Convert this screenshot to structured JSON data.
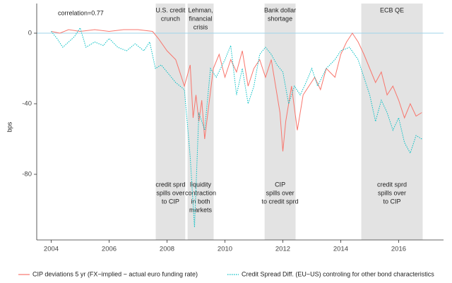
{
  "chart_data": {
    "type": "line",
    "y_label": "bps",
    "xlim": [
      2003.5,
      2017.55
    ],
    "ylim": [
      -117.2,
      16.8
    ],
    "xticks": [
      2004,
      2006,
      2008,
      2010,
      2012,
      2014,
      2016
    ],
    "yticks": [
      0,
      -40,
      -80
    ],
    "hline": 0,
    "hline_color": "#9fd3ea",
    "region_color": "#e3e3e3",
    "annotations": [
      "correlation=0.77"
    ],
    "regions": [
      {
        "start": 2007.61,
        "end": 2008.63,
        "label": [
          "U.S. credit",
          "crunch"
        ],
        "note": [
          "credit sprd",
          "spills over",
          "to CIP"
        ]
      },
      {
        "start": 2008.71,
        "end": 2009.61,
        "label": [
          "Lehman,",
          "financial",
          "crisis"
        ],
        "note": [
          "liquidity",
          "contraction",
          "in both",
          "markets"
        ]
      },
      {
        "start": 2011.37,
        "end": 2012.44,
        "label": [
          "Bank dollar",
          "shortage"
        ],
        "note": [
          "CIP",
          "spills over",
          "to credit sprd"
        ]
      },
      {
        "start": 2014.71,
        "end": 2016.83,
        "label": [
          "ECB QE"
        ],
        "note": [
          "credit sprd",
          "spills over",
          "to CIP"
        ]
      }
    ],
    "legend": "bottom",
    "series": [
      {
        "name": "CIP deviations 5 yr (FX−implied − actual euro funding rate)",
        "color": "#f8766d",
        "dashed": false,
        "x": [
          2004.0,
          2004.3,
          2004.6,
          2005.0,
          2005.5,
          2006.0,
          2006.5,
          2007.0,
          2007.5,
          2007.7,
          2008.0,
          2008.3,
          2008.6,
          2008.8,
          2008.9,
          2009.0,
          2009.1,
          2009.2,
          2009.3,
          2009.45,
          2009.6,
          2009.8,
          2010.0,
          2010.2,
          2010.4,
          2010.6,
          2010.8,
          2011.0,
          2011.2,
          2011.4,
          2011.6,
          2011.8,
          2011.9,
          2012.0,
          2012.1,
          2012.3,
          2012.5,
          2012.7,
          2012.9,
          2013.1,
          2013.3,
          2013.5,
          2013.8,
          2014.0,
          2014.2,
          2014.4,
          2014.6,
          2014.8,
          2015.0,
          2015.2,
          2015.4,
          2015.6,
          2015.8,
          2016.0,
          2016.2,
          2016.4,
          2016.6,
          2016.8
        ],
        "values": [
          1,
          0,
          2,
          1,
          2,
          1,
          2,
          2,
          1,
          -3,
          -10,
          -15,
          -30,
          -18,
          -48,
          -35,
          -50,
          -38,
          -60,
          -40,
          -20,
          -12,
          -25,
          -15,
          -22,
          -10,
          -30,
          -20,
          -15,
          -25,
          -15,
          -35,
          -45,
          -67,
          -50,
          -30,
          -55,
          -35,
          -30,
          -25,
          -32,
          -20,
          -25,
          -12,
          -5,
          0,
          -5,
          -12,
          -20,
          -28,
          -22,
          -35,
          -30,
          -38,
          -48,
          -40,
          -47,
          -45
        ]
      },
      {
        "name": "Credit Spread Diff. (EU−US) controling for other bond characteristics",
        "color": "#00bfc4",
        "dashed": true,
        "x": [
          2004.0,
          2004.2,
          2004.4,
          2004.6,
          2004.8,
          2005.0,
          2005.2,
          2005.5,
          2005.8,
          2006.0,
          2006.3,
          2006.6,
          2006.9,
          2007.2,
          2007.4,
          2007.6,
          2007.8,
          2008.0,
          2008.3,
          2008.6,
          2008.8,
          2008.95,
          2009.1,
          2009.3,
          2009.5,
          2009.7,
          2010.0,
          2010.2,
          2010.4,
          2010.6,
          2010.8,
          2011.0,
          2011.2,
          2011.4,
          2011.6,
          2011.8,
          2012.0,
          2012.2,
          2012.4,
          2012.6,
          2012.8,
          2013.0,
          2013.2,
          2013.5,
          2013.8,
          2014.0,
          2014.3,
          2014.6,
          2014.8,
          2015.0,
          2015.2,
          2015.4,
          2015.6,
          2015.8,
          2016.0,
          2016.2,
          2016.4,
          2016.6,
          2016.8
        ],
        "values": [
          1,
          -3,
          -8,
          -5,
          -2,
          3,
          -8,
          -5,
          -7,
          -3,
          -8,
          -10,
          -6,
          -10,
          -5,
          -20,
          -18,
          -22,
          -28,
          -32,
          -70,
          -110,
          -45,
          -55,
          -20,
          -25,
          -15,
          -7,
          -35,
          -20,
          -40,
          -30,
          -12,
          -8,
          -12,
          -18,
          -22,
          -40,
          -30,
          -35,
          -28,
          -20,
          -30,
          -20,
          -15,
          -10,
          -8,
          -15,
          -25,
          -35,
          -50,
          -38,
          -45,
          -55,
          -48,
          -62,
          -68,
          -58,
          -60
        ]
      }
    ]
  }
}
